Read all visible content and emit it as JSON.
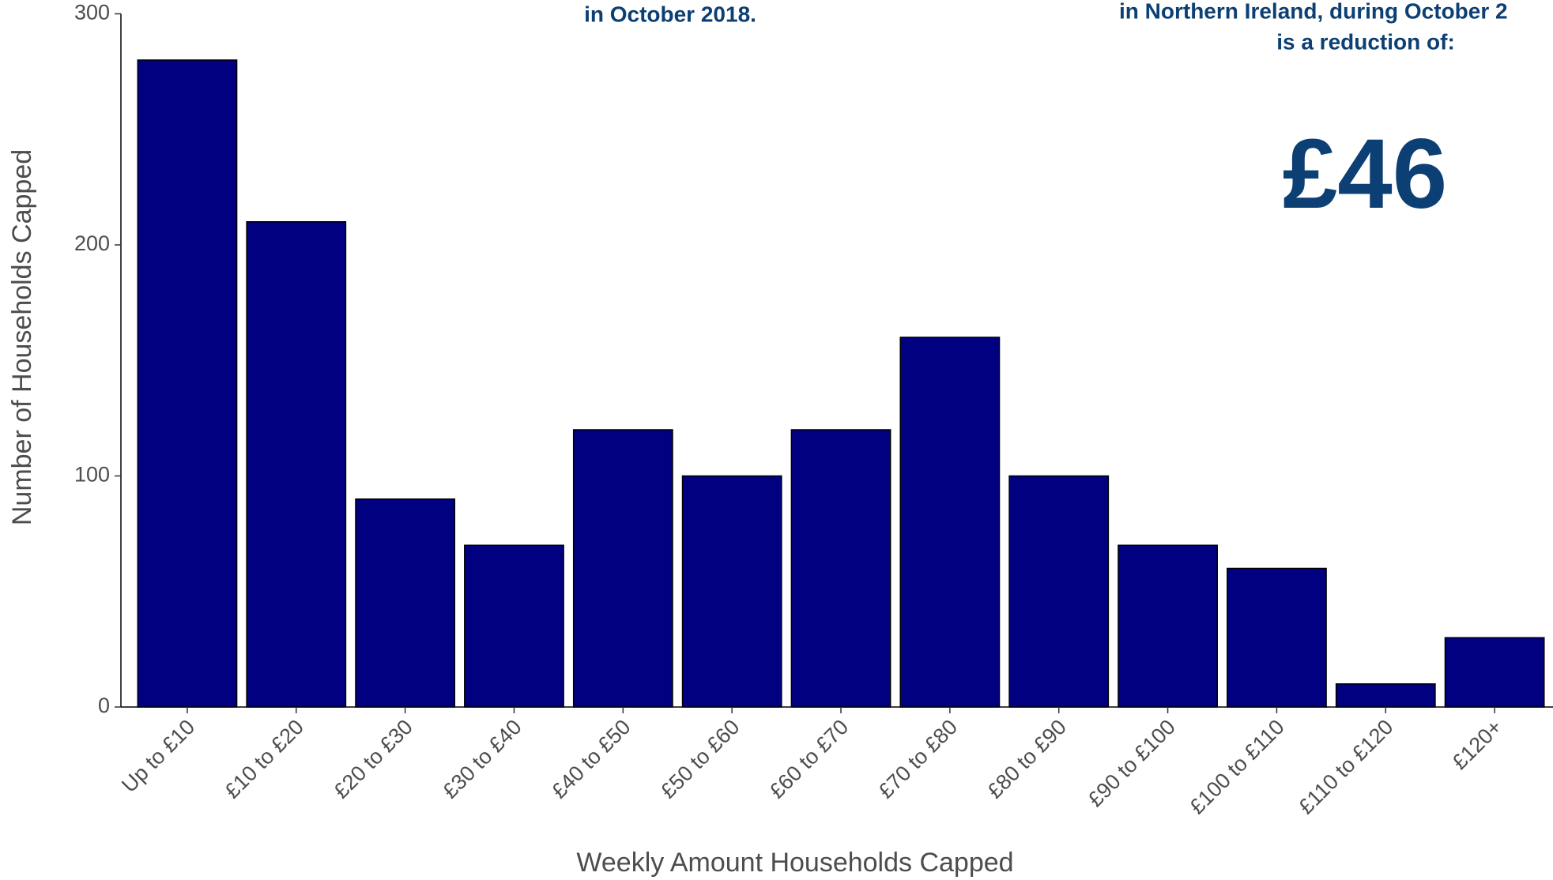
{
  "chart_data": {
    "type": "bar",
    "x_label": "Weekly Amount Households Capped",
    "y_label": "Number of Households Capped",
    "annotations": [
      "in October 2018.",
      "in Northern Ireland, during October 2",
      "is a reduction of:",
      "£46"
    ],
    "categories": [
      "Up to £10",
      "£10 to £20",
      "£20 to £30",
      "£30 to £40",
      "£40 to £50",
      "£50 to £60",
      "£60 to £70",
      "£70 to £80",
      "£80 to £90",
      "£90 to £100",
      "£100 to £110",
      "£110 to £120",
      "£120+"
    ],
    "values": [
      280,
      210,
      90,
      70,
      120,
      100,
      120,
      160,
      100,
      70,
      60,
      10,
      30
    ],
    "color": "#000080",
    "ylim": [
      0,
      300
    ],
    "yticks": [
      0,
      100,
      200,
      300
    ],
    "grid": false
  }
}
